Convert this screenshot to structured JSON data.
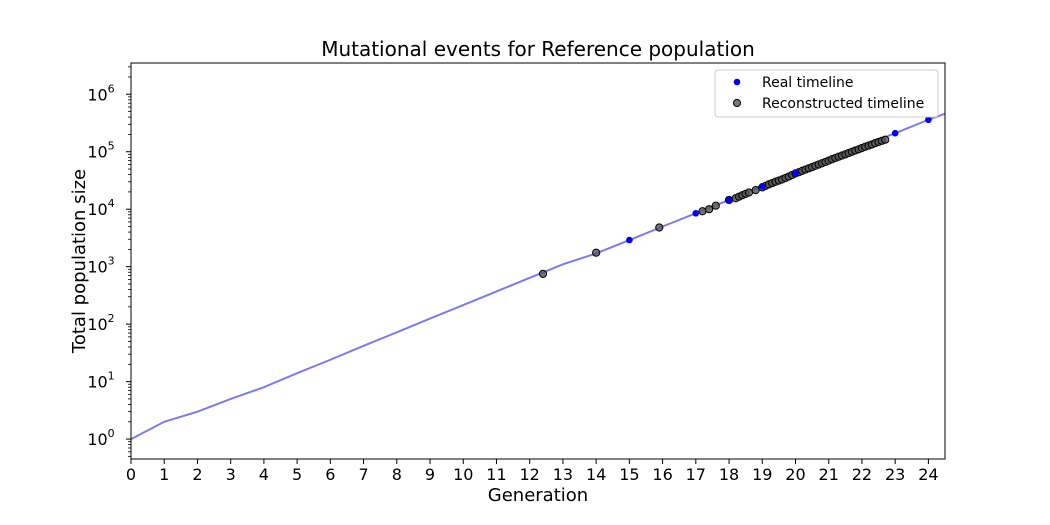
{
  "chart_data": {
    "type": "scatter",
    "title": "Mutational events for Reference population",
    "xlabel": "Generation",
    "ylabel": "Total population size",
    "y_scale": "log",
    "xlim": [
      0,
      24.5
    ],
    "ylim": [
      0.45,
      3500000
    ],
    "x_ticks": [
      "0",
      "1",
      "2",
      "3",
      "4",
      "5",
      "6",
      "7",
      "8",
      "9",
      "10",
      "11",
      "12",
      "13",
      "14",
      "15",
      "16",
      "17",
      "18",
      "19",
      "20",
      "21",
      "22",
      "23",
      "24"
    ],
    "y_ticks": [
      {
        "value": 1,
        "base": "10",
        "exp": "0"
      },
      {
        "value": 10,
        "base": "10",
        "exp": "1"
      },
      {
        "value": 100,
        "base": "10",
        "exp": "2"
      },
      {
        "value": 1000,
        "base": "10",
        "exp": "3"
      },
      {
        "value": 10000,
        "base": "10",
        "exp": "4"
      },
      {
        "value": 100000,
        "base": "10",
        "exp": "5"
      },
      {
        "value": 1000000,
        "base": "10",
        "exp": "6"
      }
    ],
    "grid": false,
    "legend_position": "top-right",
    "growth_line": {
      "color": "#7b7bf0",
      "points": [
        [
          0,
          1
        ],
        [
          1,
          2
        ],
        [
          2,
          3
        ],
        [
          3,
          5
        ],
        [
          4,
          8
        ],
        [
          5,
          14
        ],
        [
          6,
          24
        ],
        [
          7,
          42
        ],
        [
          8,
          72
        ],
        [
          9,
          125
        ],
        [
          10,
          215
        ],
        [
          11,
          370
        ],
        [
          12,
          640
        ],
        [
          13,
          1100
        ],
        [
          14,
          1700
        ],
        [
          15,
          2900
        ],
        [
          16,
          5000
        ],
        [
          17,
          8500
        ],
        [
          18,
          14500
        ],
        [
          19,
          25000
        ],
        [
          20,
          43000
        ],
        [
          21,
          73000
        ],
        [
          22,
          125000
        ],
        [
          23,
          210000
        ],
        [
          24,
          360000
        ],
        [
          24.5,
          460000
        ]
      ]
    },
    "series": [
      {
        "name": "Real timeline",
        "color": "#0000ee",
        "points": [
          [
            15,
            2900
          ],
          [
            17,
            8500
          ],
          [
            18,
            14500
          ],
          [
            19,
            25000
          ],
          [
            20,
            43000
          ],
          [
            23,
            210000
          ],
          [
            24,
            360000
          ]
        ]
      },
      {
        "name": "Reconstructed timeline",
        "color": "#555555",
        "points": [
          [
            12.4,
            750
          ],
          [
            14.0,
            1750
          ],
          [
            15.9,
            4800
          ],
          [
            17.2,
            9200
          ],
          [
            17.4,
            10000
          ],
          [
            17.6,
            11500
          ],
          [
            18.0,
            14500
          ],
          [
            18.2,
            15500
          ],
          [
            18.3,
            16500
          ],
          [
            18.4,
            17500
          ],
          [
            18.5,
            18500
          ],
          [
            18.6,
            19500
          ],
          [
            18.8,
            21500
          ],
          [
            19.0,
            24000
          ],
          [
            19.1,
            25500
          ],
          [
            19.2,
            27000
          ],
          [
            19.3,
            28500
          ],
          [
            19.4,
            30000
          ],
          [
            19.5,
            31500
          ],
          [
            19.6,
            33000
          ],
          [
            19.7,
            35000
          ],
          [
            19.8,
            37000
          ],
          [
            19.9,
            39500
          ],
          [
            20.0,
            42000
          ],
          [
            20.1,
            44000
          ],
          [
            20.2,
            46500
          ],
          [
            20.3,
            49000
          ],
          [
            20.4,
            51500
          ],
          [
            20.5,
            54000
          ],
          [
            20.6,
            57000
          ],
          [
            20.7,
            60000
          ],
          [
            20.8,
            63000
          ],
          [
            20.9,
            66500
          ],
          [
            21.0,
            70000
          ],
          [
            21.1,
            74000
          ],
          [
            21.2,
            78000
          ],
          [
            21.3,
            82000
          ],
          [
            21.4,
            86000
          ],
          [
            21.5,
            90000
          ],
          [
            21.6,
            95000
          ],
          [
            21.7,
            100000
          ],
          [
            21.8,
            105000
          ],
          [
            21.9,
            110000
          ],
          [
            22.0,
            116000
          ],
          [
            22.1,
            122000
          ],
          [
            22.2,
            128000
          ],
          [
            22.3,
            134000
          ],
          [
            22.4,
            141000
          ],
          [
            22.5,
            148000
          ],
          [
            22.6,
            155000
          ],
          [
            22.7,
            162000
          ]
        ]
      }
    ]
  }
}
